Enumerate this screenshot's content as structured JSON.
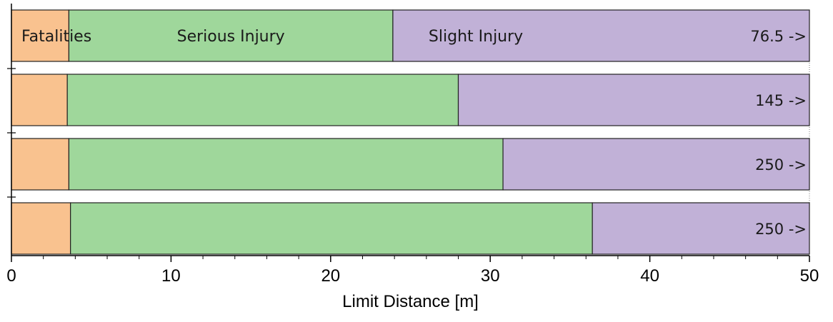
{
  "chart_data": {
    "type": "bar",
    "orientation": "horizontal",
    "stacked": true,
    "xlabel": "Limit Distance  [m]",
    "xlim": [
      0,
      50
    ],
    "x_ticks": [
      "0",
      "10",
      "20",
      "30",
      "40",
      "50"
    ],
    "grid": false,
    "segment_labels": [
      "Fatalities",
      "Serious Injury",
      "Slight Injury"
    ],
    "rows": [
      {
        "values": [
          3.6,
          23.9,
          50
        ],
        "end_label": "76.5 ->"
      },
      {
        "values": [
          3.5,
          28.0,
          50
        ],
        "end_label": "145 ->"
      },
      {
        "values": [
          3.6,
          30.8,
          50
        ],
        "end_label": "250 ->"
      },
      {
        "values": [
          3.7,
          36.4,
          50
        ],
        "end_label": "250 ->"
      }
    ],
    "colors": {
      "fatalities": "#f9c28f",
      "serious": "#9fd79b",
      "slight": "#c1b1d7"
    }
  }
}
